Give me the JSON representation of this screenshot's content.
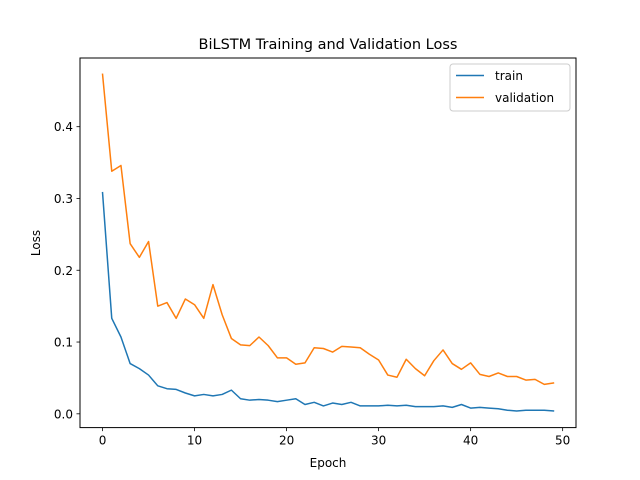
{
  "chart_data": {
    "type": "line",
    "title": "BiLSTM Training and Validation Loss",
    "xlabel": "Epoch",
    "ylabel": "Loss",
    "xlim": [
      -2.45,
      51.45
    ],
    "ylim": [
      -0.0192,
      0.4957
    ],
    "xticks": [
      0,
      10,
      20,
      30,
      40,
      50
    ],
    "xtick_labels": [
      "0",
      "10",
      "20",
      "30",
      "40",
      "50"
    ],
    "yticks": [
      0.0,
      0.1,
      0.2,
      0.3,
      0.4
    ],
    "ytick_labels": [
      "0.0",
      "0.1",
      "0.2",
      "0.3",
      "0.4"
    ],
    "legend_position": "upper right",
    "grid": false,
    "x": [
      0,
      1,
      2,
      3,
      4,
      5,
      6,
      7,
      8,
      9,
      10,
      11,
      12,
      13,
      14,
      15,
      16,
      17,
      18,
      19,
      20,
      21,
      22,
      23,
      24,
      25,
      26,
      27,
      28,
      29,
      30,
      31,
      32,
      33,
      34,
      35,
      36,
      37,
      38,
      39,
      40,
      41,
      42,
      43,
      44,
      45,
      46,
      47,
      48,
      49
    ],
    "series": [
      {
        "name": "train",
        "color": "#1f77b4",
        "values": [
          0.308,
          0.133,
          0.107,
          0.07,
          0.063,
          0.054,
          0.039,
          0.035,
          0.034,
          0.029,
          0.025,
          0.027,
          0.025,
          0.027,
          0.033,
          0.021,
          0.019,
          0.02,
          0.019,
          0.017,
          0.019,
          0.021,
          0.013,
          0.016,
          0.011,
          0.015,
          0.013,
          0.016,
          0.011,
          0.011,
          0.011,
          0.012,
          0.011,
          0.012,
          0.01,
          0.01,
          0.01,
          0.011,
          0.009,
          0.013,
          0.008,
          0.009,
          0.008,
          0.007,
          0.005,
          0.004,
          0.005,
          0.005,
          0.005,
          0.004
        ]
      },
      {
        "name": "validation",
        "color": "#ff7f0e",
        "values": [
          0.473,
          0.338,
          0.346,
          0.237,
          0.218,
          0.24,
          0.15,
          0.155,
          0.133,
          0.16,
          0.152,
          0.133,
          0.18,
          0.138,
          0.105,
          0.096,
          0.095,
          0.107,
          0.095,
          0.078,
          0.078,
          0.069,
          0.071,
          0.092,
          0.091,
          0.086,
          0.094,
          0.093,
          0.092,
          0.083,
          0.075,
          0.054,
          0.051,
          0.076,
          0.063,
          0.053,
          0.074,
          0.089,
          0.07,
          0.062,
          0.071,
          0.055,
          0.052,
          0.057,
          0.052,
          0.052,
          0.047,
          0.048,
          0.041,
          0.043
        ]
      }
    ]
  }
}
